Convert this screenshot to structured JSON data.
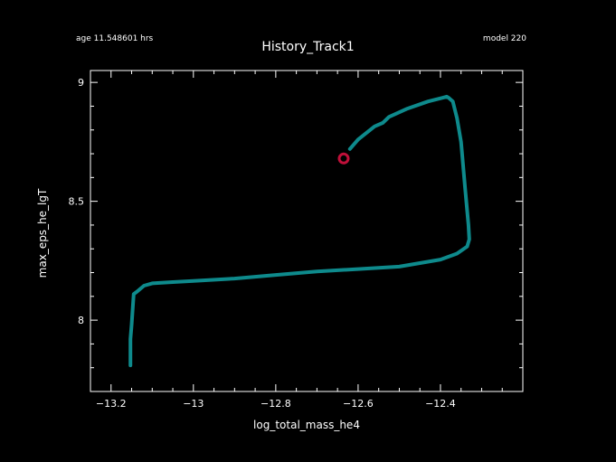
{
  "header": {
    "age": "age 11.548601 hrs",
    "model": "model 220"
  },
  "chart_data": {
    "type": "line",
    "title": "History_Track1",
    "xlabel": "log_total_mass_he4",
    "ylabel": "max_eps_he_lgT",
    "xlim": [
      -13.25,
      -12.2
    ],
    "ylim": [
      7.7,
      9.05
    ],
    "x_ticks": [
      -13.2,
      -13,
      -12.8,
      -12.6,
      -12.4
    ],
    "x_tick_labels": [
      "−13.2",
      "−13",
      "−12.8",
      "−12.6",
      "−12.4"
    ],
    "y_ticks": [
      8,
      8.5,
      9
    ],
    "y_tick_labels": [
      "8",
      "8.5",
      "9"
    ],
    "series": [
      {
        "color": "#0e8a8c",
        "x": [
          -13.153,
          -13.153,
          -13.15,
          -13.145,
          -13.137,
          -13.12,
          -13.1,
          -13.05,
          -13.0,
          -12.9,
          -12.8,
          -12.7,
          -12.6,
          -12.5,
          -12.45,
          -12.4,
          -12.36,
          -12.335,
          -12.33,
          -12.332,
          -12.34,
          -12.35,
          -12.36,
          -12.37,
          -12.38,
          -12.385,
          -12.395,
          -12.43,
          -12.48,
          -12.525,
          -12.54,
          -12.56,
          -12.6,
          -12.62
        ],
        "y": [
          7.81,
          7.92,
          7.98,
          8.11,
          8.12,
          8.145,
          8.155,
          8.16,
          8.165,
          8.175,
          8.19,
          8.205,
          8.215,
          8.225,
          8.24,
          8.255,
          8.28,
          8.31,
          8.34,
          8.4,
          8.55,
          8.75,
          8.85,
          8.92,
          8.935,
          8.94,
          8.935,
          8.92,
          8.89,
          8.855,
          8.83,
          8.815,
          8.76,
          8.72
        ]
      }
    ],
    "marker": {
      "x": -12.635,
      "y": 8.68,
      "color": "#c0103a"
    },
    "grid": false
  }
}
